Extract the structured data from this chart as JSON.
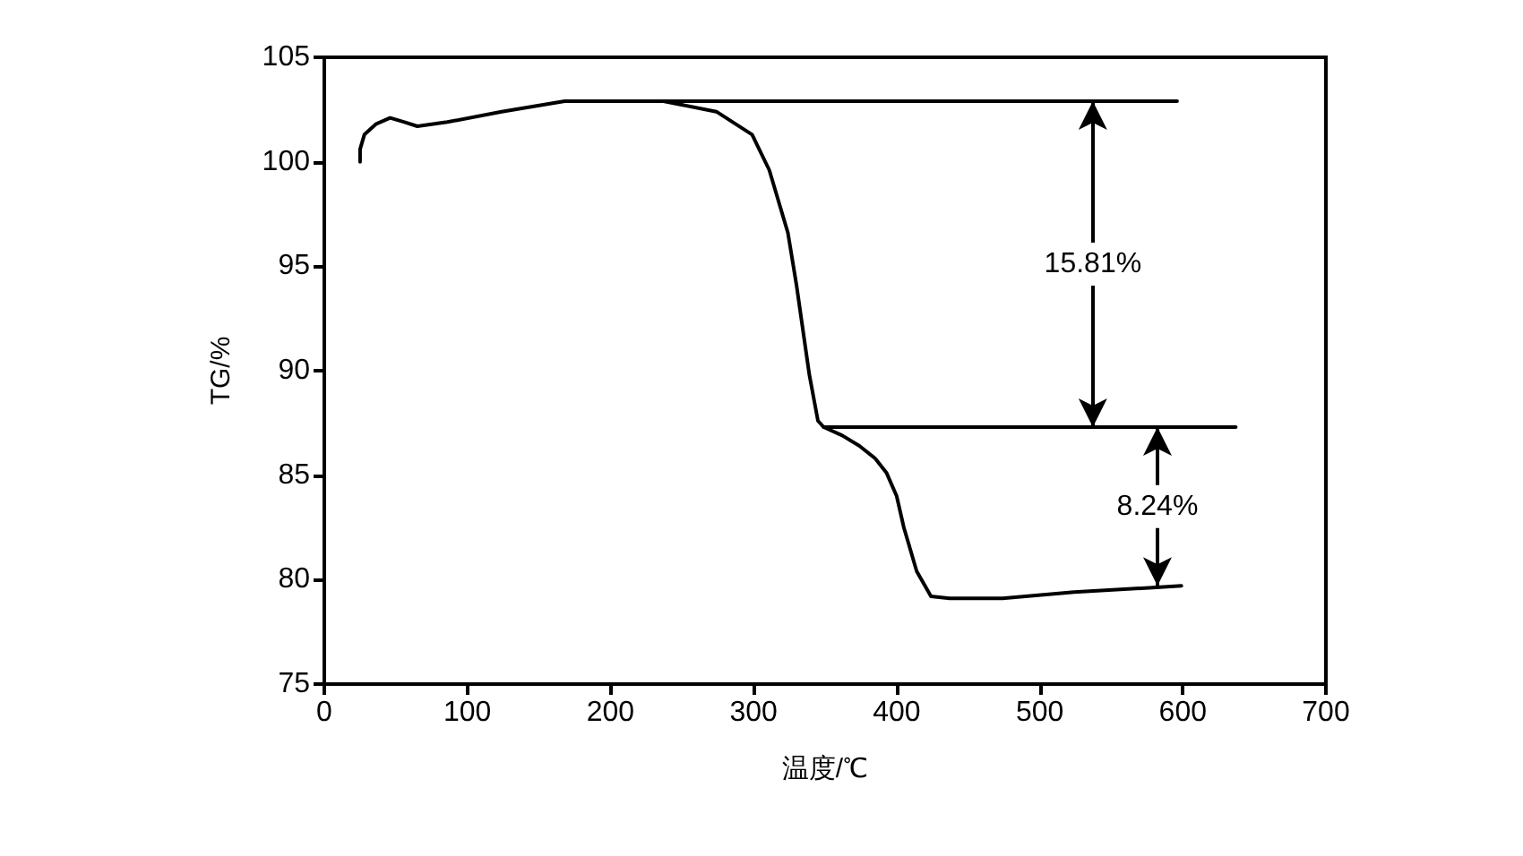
{
  "chart_data": {
    "type": "line",
    "xlabel": "温度/℃",
    "ylabel": "TG/%",
    "xlim": [
      0,
      700
    ],
    "xticks": [
      0,
      100,
      200,
      300,
      400,
      500,
      600,
      700
    ],
    "ylim": [
      75,
      105
    ],
    "yticks": [
      75,
      80,
      85,
      90,
      95,
      100,
      105
    ],
    "grid": false,
    "marker": "none",
    "line_style": "solid",
    "series": [
      {
        "color": "#000000",
        "x": [
          25,
          25,
          28,
          36,
          46,
          56,
          65,
          86,
          124,
          168,
          200,
          237,
          274,
          299,
          311,
          324,
          330,
          339,
          345,
          349,
          362,
          374,
          385,
          393,
          400,
          405,
          414,
          424,
          437,
          474,
          524,
          574,
          599
        ],
        "values": [
          100,
          100.6,
          101.3,
          101.8,
          102.1,
          101.9,
          101.7,
          101.9,
          102.4,
          102.9,
          102.9,
          102.9,
          102.4,
          101.3,
          99.6,
          96.6,
          94.1,
          89.8,
          87.6,
          87.3,
          86.9,
          86.4,
          85.8,
          85.1,
          84,
          82.5,
          80.4,
          79.2,
          79.1,
          79.1,
          79.4,
          79.6,
          79.7
        ]
      },
      {
        "color": "#000000",
        "x": [
          228,
          596
        ],
        "values": [
          102.9,
          102.9
        ]
      },
      {
        "color": "#000000",
        "x": [
          349,
          637
        ],
        "values": [
          87.3,
          87.3
        ]
      }
    ],
    "annotations": [
      "15.81%",
      "8.24%"
    ]
  }
}
